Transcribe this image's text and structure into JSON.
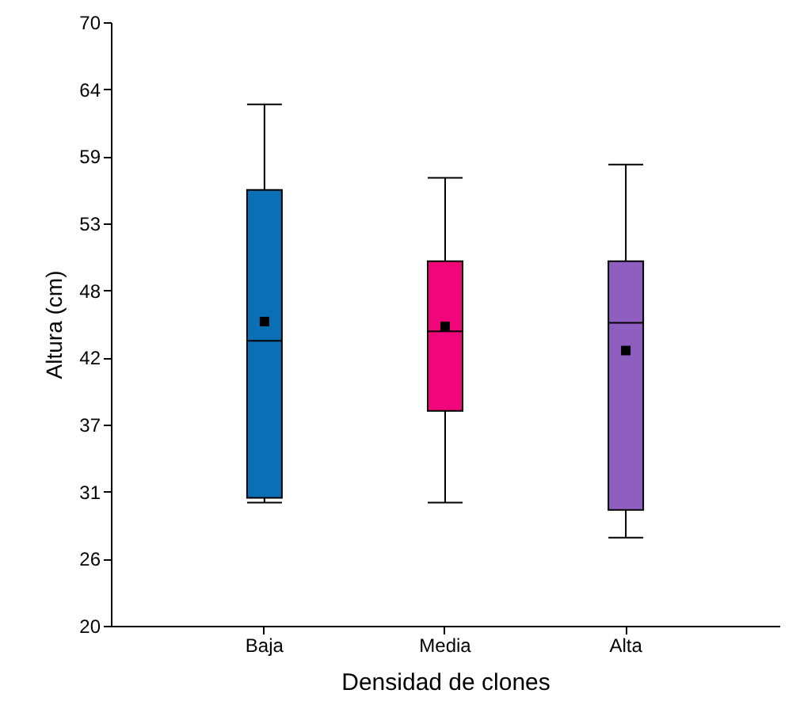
{
  "chart_data": {
    "type": "box",
    "xlabel": "Densidad de clones",
    "ylabel": "Altura (cm)",
    "categories": [
      "Baja",
      "Media",
      "Alta"
    ],
    "colors": [
      "#0b6fb5",
      "#f0057a",
      "#8e5fc0"
    ],
    "boxes": [
      {
        "low": 30.2,
        "q1": 30.6,
        "median": 43.6,
        "q3": 56.1,
        "high": 63.2,
        "mean": 45.2
      },
      {
        "low": 30.2,
        "q1": 37.8,
        "median": 44.4,
        "q3": 50.2,
        "high": 57.1,
        "mean": 44.8
      },
      {
        "low": 27.3,
        "q1": 29.6,
        "median": 45.1,
        "q3": 50.2,
        "high": 58.2,
        "mean": 42.8
      }
    ],
    "ylim": [
      20,
      70
    ],
    "yticks": [
      {
        "value": 20,
        "label": "20"
      },
      {
        "value": 25.56,
        "label": "26"
      },
      {
        "value": 31.11,
        "label": "31"
      },
      {
        "value": 36.67,
        "label": "37"
      },
      {
        "value": 42.22,
        "label": "42"
      },
      {
        "value": 47.78,
        "label": "48"
      },
      {
        "value": 53.33,
        "label": "53"
      },
      {
        "value": 58.89,
        "label": "59"
      },
      {
        "value": 64.44,
        "label": "64"
      },
      {
        "value": 70,
        "label": "70"
      }
    ]
  }
}
